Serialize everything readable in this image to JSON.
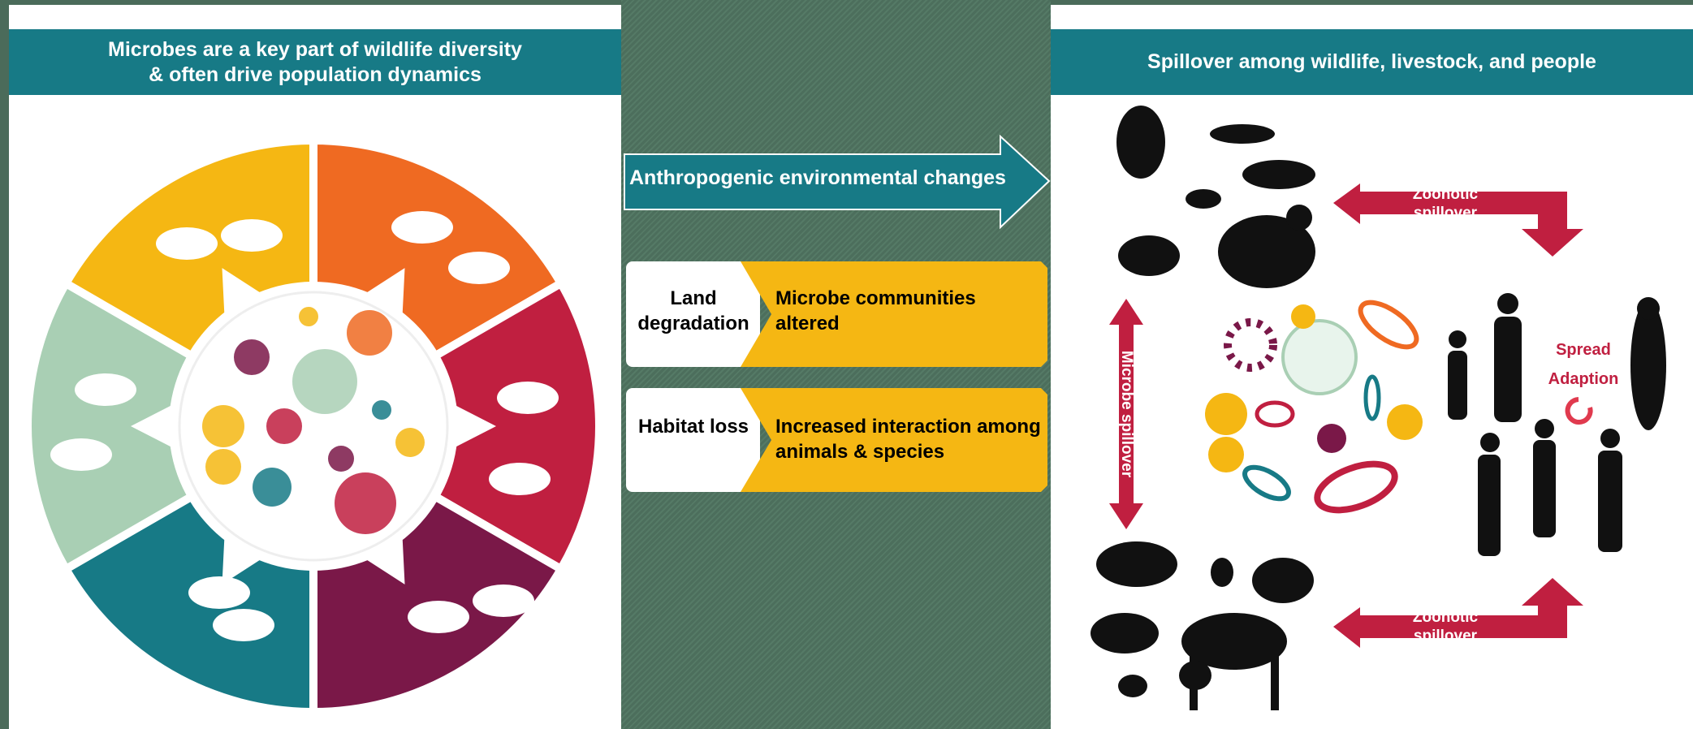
{
  "left": {
    "title": [
      "Microbes are a key part of wildlife diversity",
      "& often drive population dynamics"
    ]
  },
  "middle": {
    "arrow": "Anthropogenic environmental changes",
    "rows": [
      {
        "cause": "Land degradation",
        "effect": "Microbe communities altered"
      },
      {
        "cause": "Habitat loss",
        "effect": "Increased interaction among animals & species"
      }
    ]
  },
  "right": {
    "title": "Spillover among wildlife, livestock, and people",
    "zoonotic": [
      "Zoonotic spillover",
      "Zoonotic spillover"
    ],
    "microbe_spillover": "Microbe spillover",
    "spread": "Spread",
    "adaption": "Adaption"
  }
}
